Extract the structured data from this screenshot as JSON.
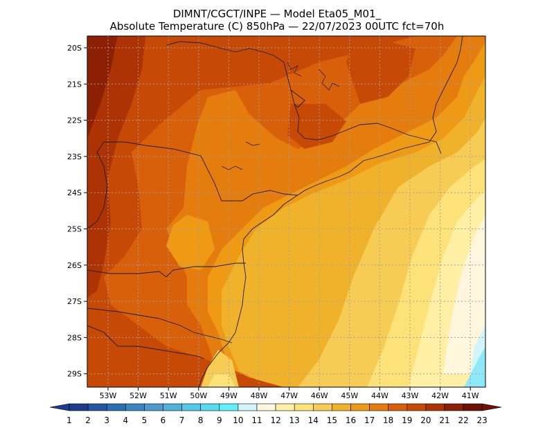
{
  "title_line1": "DIMNT/CGCT/INPE —  Model Eta05_M01_",
  "title_line2": "Absolute Temperature (C) 850hPa —  22/07/2023 00UTC fct=70h",
  "lat_ticks": [
    "20S",
    "21S",
    "22S",
    "23S",
    "24S",
    "25S",
    "26S",
    "27S",
    "28S",
    "29S"
  ],
  "lon_ticks": [
    "53W",
    "52W",
    "51W",
    "50W",
    "49W",
    "48W",
    "47W",
    "46W",
    "45W",
    "44W",
    "43W",
    "42W",
    "41W"
  ],
  "colorbar": {
    "labels": [
      "1",
      "2",
      "3",
      "4",
      "5",
      "6",
      "7",
      "8",
      "9",
      "10",
      "11",
      "12",
      "13",
      "14",
      "15",
      "16",
      "17",
      "18",
      "19",
      "20",
      "21",
      "22",
      "23"
    ],
    "colors": [
      "#1c3c8c",
      "#2457a3",
      "#2a6fb5",
      "#3a86c4",
      "#4a9bd0",
      "#4fb1dc",
      "#52c7e8",
      "#55dcf2",
      "#5ff0fb",
      "#d2f4fb",
      "#fff6de",
      "#fff0a6",
      "#fde27a",
      "#f6cc54",
      "#f1b22b",
      "#ee9a14",
      "#e57c0e",
      "#d8600a",
      "#c64a06",
      "#ad3304",
      "#8d2004",
      "#6e1005"
    ],
    "low_arrow_color": "#1c3c8c",
    "high_arrow_color": "#6e1005"
  },
  "fill_colors": {
    "c11": "#fff6de",
    "c12": "#fff0a6",
    "c13": "#fde27a",
    "c14": "#f6cc54",
    "c15": "#f1b22b",
    "c16": "#ee9a14",
    "c17": "#e57c0e",
    "c18": "#d8600a",
    "c19": "#c64a06",
    "c20": "#ad3304",
    "c21": "#8d2004",
    "cold": "#d2f4fb",
    "cyan": "#8ee8f8"
  }
}
